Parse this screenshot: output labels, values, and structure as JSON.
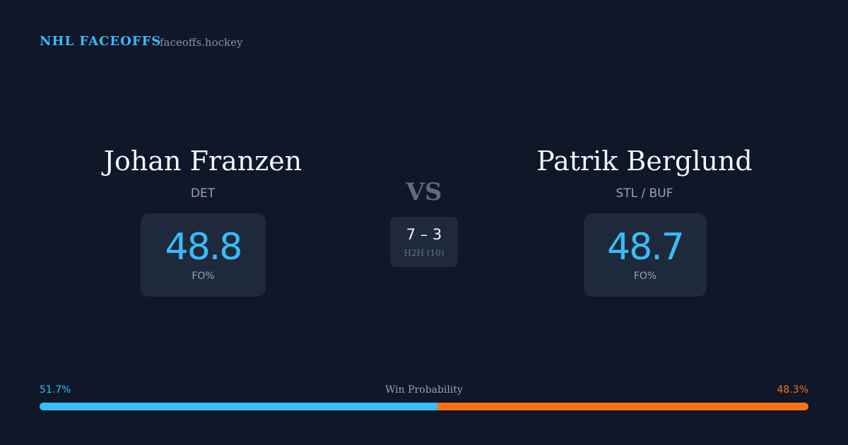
{
  "header": {
    "brand": "NHL FACEOFFS",
    "site": "faceoffs.hockey"
  },
  "players": [
    {
      "name": "Johan Franzen",
      "team": "DET",
      "fo": 48.8,
      "fo_label": "FO%"
    },
    {
      "name": "Patrik Berglund",
      "team": "STL / BUF",
      "fo": 48.7,
      "fo_label": "FO%"
    }
  ],
  "versus": "VS",
  "h2h": {
    "score": "7 – 3",
    "label": "H2H (10)"
  },
  "win_probability": {
    "title": "Win Probability",
    "values": [
      51.7,
      48.3
    ],
    "value_labels": [
      "51.7%",
      "48.3%"
    ],
    "colors": [
      "#38bdf8",
      "#f97316"
    ]
  }
}
